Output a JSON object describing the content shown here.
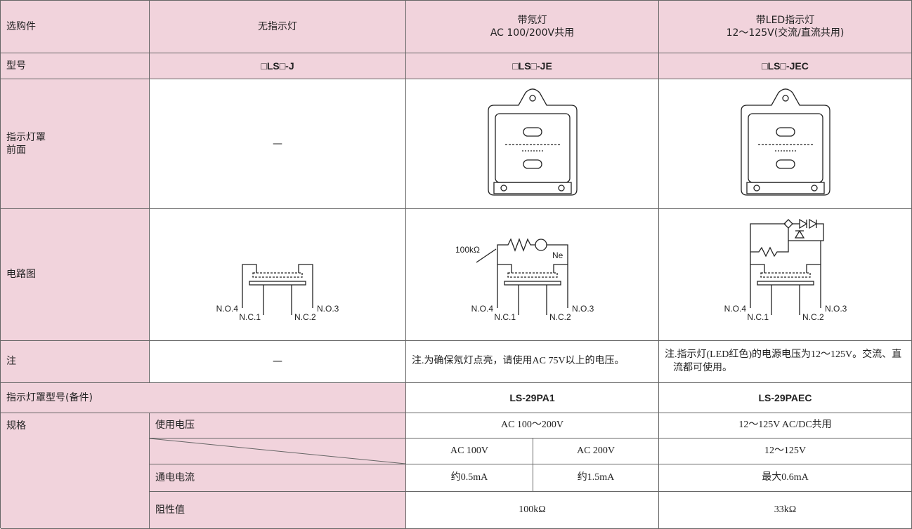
{
  "header": {
    "option": "选购件",
    "none": "无指示灯",
    "neon": [
      "带氖灯",
      "AC 100/200V共用"
    ],
    "led": [
      "带LED指示灯",
      "12～125V(交流/直流共用)"
    ]
  },
  "model": {
    "label": "型号",
    "none": "□LS□-J",
    "neon": "□LS□-JE",
    "led": "□LS□-JEC"
  },
  "cover_front": {
    "label": [
      "指示灯罩",
      "前面"
    ],
    "none": "—"
  },
  "circuit": {
    "label": "电路图",
    "none": {
      "terminals": [
        "N.O.4",
        "N.C.1",
        "N.O.3",
        "N.C.2"
      ]
    },
    "neon": {
      "resistor": "100kΩ",
      "lamp": "Ne",
      "terminals": [
        "N.O.4",
        "N.C.1",
        "N.O.3",
        "N.C.2"
      ]
    },
    "led": {
      "terminals": [
        "N.O.4",
        "N.C.1",
        "N.O.3",
        "N.C.2"
      ]
    }
  },
  "note": {
    "label": "注",
    "none": "—",
    "neon": "注.为确保氖灯点亮，请使用AC 75V以上的电压。",
    "led": "注.指示灯(LED红色)的电源电压为12～125V。交流、直流都可使用。"
  },
  "cover_model": {
    "label": "指示灯罩型号(备件)",
    "neon": "LS-29PA1",
    "led": "LS-29PAEC"
  },
  "spec": {
    "label": "规格",
    "voltage": {
      "item": "使用电压",
      "neon": "AC 100～200V",
      "led": "12～125V AC/DC共用"
    },
    "rated": {
      "neon": [
        "AC 100V",
        "AC 200V"
      ],
      "led": "12～125V"
    },
    "current": {
      "item": "通电电流",
      "neon": [
        "约0.5mA",
        "约1.5mA"
      ],
      "led": "最大0.6mA"
    },
    "resistance": {
      "item": "阻性值",
      "neon": "100kΩ",
      "led": "33kΩ"
    }
  }
}
